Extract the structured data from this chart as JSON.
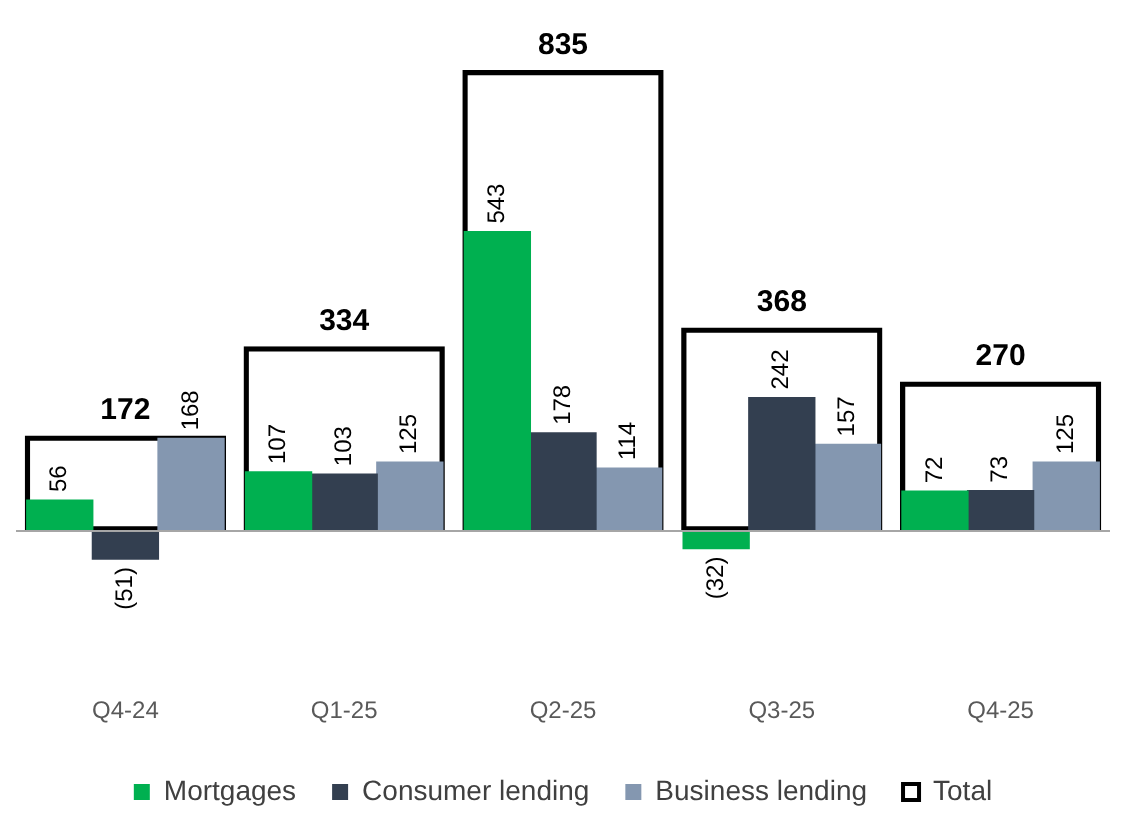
{
  "chart_data": {
    "type": "bar",
    "categories": [
      "Q4-24",
      "Q1-25",
      "Q2-25",
      "Q3-25",
      "Q4-25"
    ],
    "series": [
      {
        "name": "Mortgages",
        "color": "#00b050",
        "values": [
          56,
          107,
          543,
          -32,
          72
        ],
        "value_labels": [
          "56",
          "107",
          "543",
          "(32)",
          "72"
        ]
      },
      {
        "name": "Consumer lending",
        "color": "#333f50",
        "values": [
          -51,
          103,
          178,
          242,
          73
        ],
        "value_labels": [
          "(51)",
          "103",
          "178",
          "242",
          "73"
        ]
      },
      {
        "name": "Business lending",
        "color": "#8497b0",
        "values": [
          168,
          125,
          114,
          157,
          125
        ],
        "value_labels": [
          "168",
          "125",
          "114",
          "157",
          "125"
        ]
      },
      {
        "name": "Total",
        "type": "bar",
        "color": "#000000",
        "values": [
          172,
          334,
          835,
          368,
          270
        ],
        "value_labels": [
          "172",
          "334",
          "835",
          "368",
          "270"
        ]
      }
    ],
    "legend": "bottom",
    "grid": false,
    "tick_labels": "x"
  }
}
